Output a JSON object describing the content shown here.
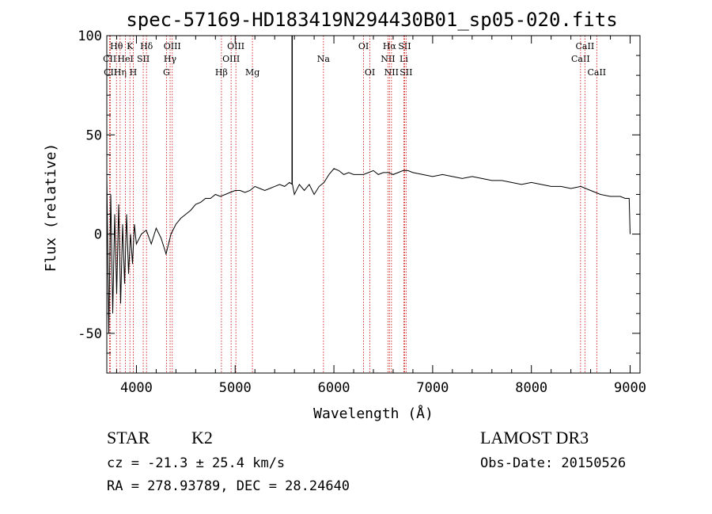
{
  "chart_data": {
    "type": "line",
    "title": "spec-57169-HD183419N294430B01_sp05-020.fits",
    "xlabel": "Wavelength (Å)",
    "ylabel": "Flux (relative)",
    "xlim": [
      3700,
      9100
    ],
    "ylim": [
      -70,
      100
    ],
    "x_ticks": [
      4000,
      5000,
      6000,
      7000,
      8000,
      9000
    ],
    "y_ticks": [
      -50,
      0,
      50,
      100
    ],
    "grid": false,
    "series": [
      {
        "name": "flux",
        "x": [
          3700,
          3720,
          3740,
          3760,
          3780,
          3800,
          3820,
          3840,
          3860,
          3880,
          3900,
          3920,
          3940,
          3960,
          3980,
          4000,
          4050,
          4100,
          4150,
          4200,
          4250,
          4300,
          4350,
          4400,
          4450,
          4500,
          4550,
          4600,
          4650,
          4700,
          4750,
          4800,
          4850,
          4900,
          4950,
          5000,
          5050,
          5100,
          5150,
          5200,
          5250,
          5300,
          5350,
          5400,
          5450,
          5500,
          5550,
          5580,
          5600,
          5650,
          5700,
          5750,
          5800,
          5850,
          5900,
          5950,
          6000,
          6050,
          6100,
          6150,
          6200,
          6250,
          6300,
          6350,
          6400,
          6450,
          6500,
          6550,
          6600,
          6650,
          6700,
          6750,
          6800,
          6900,
          7000,
          7100,
          7200,
          7300,
          7400,
          7500,
          7600,
          7700,
          7800,
          7900,
          8000,
          8100,
          8200,
          8300,
          8400,
          8500,
          8600,
          8700,
          8800,
          8900,
          8950,
          8990,
          9000
        ],
        "y": [
          30,
          -50,
          20,
          -40,
          10,
          -30,
          15,
          -35,
          5,
          -25,
          10,
          -20,
          0,
          -15,
          5,
          -5,
          0,
          2,
          -5,
          3,
          -2,
          -10,
          0,
          5,
          8,
          10,
          12,
          15,
          16,
          18,
          18,
          20,
          19,
          20,
          21,
          22,
          22,
          21,
          22,
          24,
          23,
          22,
          23,
          24,
          25,
          24,
          26,
          25,
          20,
          25,
          22,
          25,
          20,
          24,
          26,
          30,
          33,
          32,
          30,
          31,
          30,
          30,
          30,
          31,
          32,
          30,
          31,
          31,
          30,
          31,
          32,
          32,
          31,
          30,
          29,
          30,
          29,
          28,
          29,
          28,
          27,
          27,
          26,
          25,
          26,
          25,
          24,
          24,
          23,
          24,
          22,
          20,
          19,
          19,
          18,
          18,
          0
        ]
      }
    ],
    "spike": {
      "x": 5577,
      "y": 100
    },
    "line_markers": [
      {
        "label": "Hθ",
        "x": 3798,
        "row": 1
      },
      {
        "label": "Hη",
        "x": 3835,
        "row": 3
      },
      {
        "label": "HeI",
        "x": 3889,
        "row": 2
      },
      {
        "label": "K",
        "x": 3934,
        "row": 1
      },
      {
        "label": "H",
        "x": 3968,
        "row": 3
      },
      {
        "label": "SII",
        "x": 4069,
        "row": 2
      },
      {
        "label": "Hδ",
        "x": 4102,
        "row": 1
      },
      {
        "label": "CII",
        "x": 3729,
        "row": 2
      },
      {
        "label": "CII",
        "x": 3737,
        "row": 3
      },
      {
        "label": "G",
        "x": 4304,
        "row": 3
      },
      {
        "label": "Hγ",
        "x": 4341,
        "row": 2
      },
      {
        "label": "OIII",
        "x": 4363,
        "row": 1
      },
      {
        "label": "Hβ",
        "x": 4861,
        "row": 3
      },
      {
        "label": "OIII",
        "x": 4959,
        "row": 2
      },
      {
        "label": "OIII",
        "x": 5007,
        "row": 1
      },
      {
        "label": "Mg",
        "x": 5175,
        "row": 3
      },
      {
        "label": "Na",
        "x": 5894,
        "row": 2
      },
      {
        "label": "OI",
        "x": 6300,
        "row": 1
      },
      {
        "label": "OI",
        "x": 6364,
        "row": 3
      },
      {
        "label": "NII",
        "x": 6548,
        "row": 2
      },
      {
        "label": "Hα",
        "x": 6563,
        "row": 1
      },
      {
        "label": "NII",
        "x": 6583,
        "row": 3
      },
      {
        "label": "Li",
        "x": 6708,
        "row": 2
      },
      {
        "label": "SII",
        "x": 6716,
        "row": 1
      },
      {
        "label": "SII",
        "x": 6731,
        "row": 3
      },
      {
        "label": "CaII",
        "x": 8498,
        "row": 2
      },
      {
        "label": "CaII",
        "x": 8542,
        "row": 1
      },
      {
        "label": "CaII",
        "x": 8662,
        "row": 3
      }
    ]
  },
  "footer": {
    "object_class": "STAR",
    "subclass": "K2",
    "survey": "LAMOST DR3",
    "redshift": "cz = -21.3 ± 25.4 km/s",
    "obs_date": "Obs-Date: 20150526",
    "coords": "RA = 278.93789, DEC =  28.24640"
  }
}
